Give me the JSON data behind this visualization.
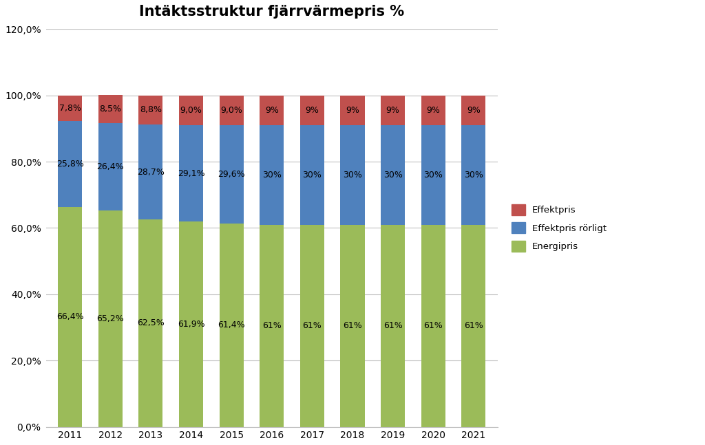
{
  "title": "Intäktsstruktur fjärrvärmepris %",
  "years": [
    2011,
    2012,
    2013,
    2014,
    2015,
    2016,
    2017,
    2018,
    2019,
    2020,
    2021
  ],
  "energipris": [
    66.4,
    65.2,
    62.5,
    61.9,
    61.4,
    61.0,
    61.0,
    61.0,
    61.0,
    61.0,
    61.0
  ],
  "effektpris_rorligt": [
    25.8,
    26.4,
    28.7,
    29.1,
    29.6,
    30.0,
    30.0,
    30.0,
    30.0,
    30.0,
    30.0
  ],
  "effektpris": [
    7.8,
    8.5,
    8.8,
    9.0,
    9.0,
    9.0,
    9.0,
    9.0,
    9.0,
    9.0,
    9.0
  ],
  "energipris_labels": [
    "66,4%",
    "65,2%",
    "62,5%",
    "61,9%",
    "61,4%",
    "61%",
    "61%",
    "61%",
    "61%",
    "61%",
    "61%"
  ],
  "effektpris_rorligt_labels": [
    "25,8%",
    "26,4%",
    "28,7%",
    "29,1%",
    "29,6%",
    "30%",
    "30%",
    "30%",
    "30%",
    "30%",
    "30%"
  ],
  "effektpris_labels": [
    "7,8%",
    "8,5%",
    "8,8%",
    "9,0%",
    "9,0%",
    "9%",
    "9%",
    "9%",
    "9%",
    "9%",
    "9%"
  ],
  "color_energipris": "#9BBB59",
  "color_effektpris_rorligt": "#4F81BD",
  "color_effektpris": "#C0504D",
  "legend_labels": [
    "Effektpris",
    "Effektpris rörligt",
    "Energipris"
  ],
  "ytick_labels": [
    "0,0%",
    "20,0%",
    "40,0%",
    "60,0%",
    "80,0%",
    "100,0%",
    "120,0%"
  ],
  "title_fontsize": 15,
  "label_fontsize": 9,
  "legend_fontsize": 9.5,
  "background_color": "#FFFFFF",
  "grid_color": "#C0C0C0"
}
